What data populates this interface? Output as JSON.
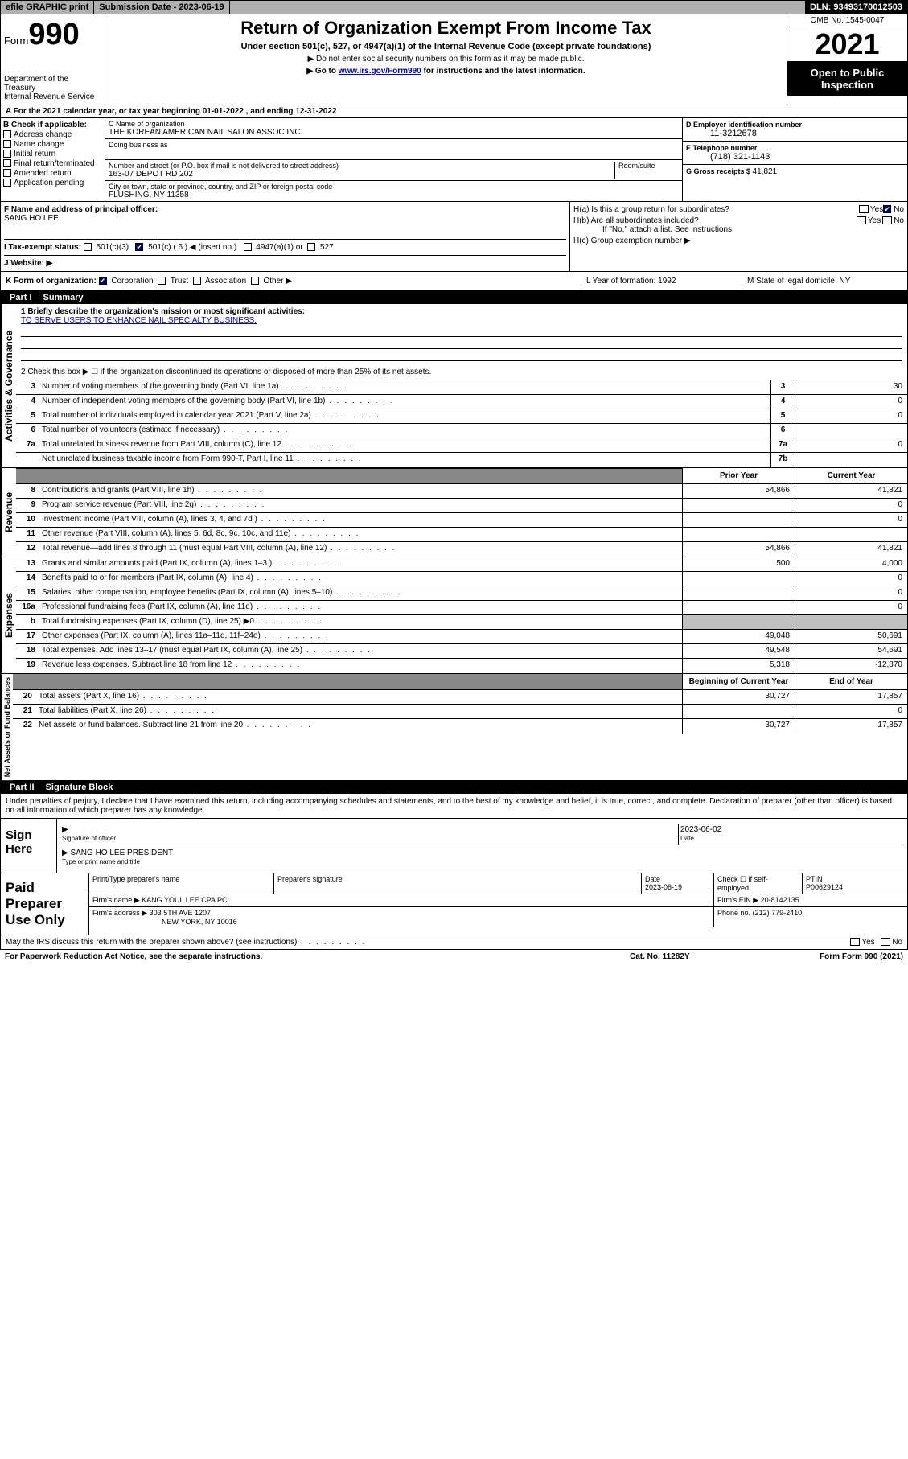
{
  "topbar": {
    "efile": "efile GRAPHIC print",
    "sub_date_label": "Submission Date - 2023-06-19",
    "dln": "DLN: 93493170012503"
  },
  "header": {
    "form_label": "Form",
    "form_num": "990",
    "dept": "Department of the Treasury",
    "irs": "Internal Revenue Service",
    "title": "Return of Organization Exempt From Income Tax",
    "subtitle": "Under section 501(c), 527, or 4947(a)(1) of the Internal Revenue Code (except private foundations)",
    "note1": "▶ Do not enter social security numbers on this form as it may be made public.",
    "note2_pre": "▶ Go to ",
    "note2_link": "www.irs.gov/Form990",
    "note2_post": " for instructions and the latest information.",
    "omb": "OMB No. 1545-0047",
    "year": "2021",
    "open": "Open to Public Inspection"
  },
  "section_a": {
    "tax_year": "A For the 2021 calendar year, or tax year beginning 01-01-2022   , and ending 12-31-2022",
    "b_label": "B Check if applicable:",
    "b_items": [
      "Address change",
      "Name change",
      "Initial return",
      "Final return/terminated",
      "Amended return",
      "Application pending"
    ],
    "c_label": "C Name of organization",
    "c_name": "THE KOREAN AMERICAN NAIL SALON ASSOC INC",
    "dba_label": "Doing business as",
    "street_label": "Number and street (or P.O. box if mail is not delivered to street address)",
    "street": "163-07 DEPOT RD 202",
    "room_label": "Room/suite",
    "city_label": "City or town, state or province, country, and ZIP or foreign postal code",
    "city": "FLUSHING, NY  11358",
    "d_label": "D Employer identification number",
    "d_val": "11-3212678",
    "e_label": "E Telephone number",
    "e_val": "(718) 321-1143",
    "g_label": "G Gross receipts $ ",
    "g_val": "41,821"
  },
  "fh": {
    "f_label": "F Name and address of principal officer:",
    "f_name": "SANG HO LEE",
    "ha": "H(a)  Is this a group return for subordinates?",
    "hb": "H(b)  Are all subordinates included?",
    "hb_note": "If \"No,\" attach a list. See instructions.",
    "hc": "H(c)  Group exemption number ▶",
    "yes": "Yes",
    "no": "No"
  },
  "ij": {
    "i_label": "I   Tax-exempt status:",
    "i_501c3": "501(c)(3)",
    "i_501c": "501(c) ( 6 ) ◀ (insert no.)",
    "i_4947": "4947(a)(1) or",
    "i_527": "527",
    "j_label": "J   Website: ▶"
  },
  "k": {
    "k_label": "K Form of organization:",
    "corp": "Corporation",
    "trust": "Trust",
    "assoc": "Association",
    "other": "Other ▶",
    "l": "L Year of formation: 1992",
    "m": "M State of legal domicile: NY"
  },
  "part1": {
    "label": "Part I",
    "title": "Summary"
  },
  "mission": {
    "q1": "1   Briefly describe the organization's mission or most significant activities:",
    "text": "TO SERVE USERS TO ENHANCE NAIL SPECIALTY BUSINESS.",
    "q2": "2   Check this box ▶ ☐  if the organization discontinued its operations or disposed of more than 25% of its net assets."
  },
  "gov_rows": [
    {
      "n": "3",
      "d": "Number of voting members of the governing body (Part VI, line 1a)",
      "box": "3",
      "v": "30"
    },
    {
      "n": "4",
      "d": "Number of independent voting members of the governing body (Part VI, line 1b)",
      "box": "4",
      "v": "0"
    },
    {
      "n": "5",
      "d": "Total number of individuals employed in calendar year 2021 (Part V, line 2a)",
      "box": "5",
      "v": "0"
    },
    {
      "n": "6",
      "d": "Total number of volunteers (estimate if necessary)",
      "box": "6",
      "v": ""
    },
    {
      "n": "7a",
      "d": "Total unrelated business revenue from Part VIII, column (C), line 12",
      "box": "7a",
      "v": "0"
    },
    {
      "n": "",
      "d": "Net unrelated business taxable income from Form 990-T, Part I, line 11",
      "box": "7b",
      "v": ""
    }
  ],
  "col_hdr": {
    "prior": "Prior Year",
    "current": "Current Year",
    "begin": "Beginning of Current Year",
    "end": "End of Year"
  },
  "rev_rows": [
    {
      "n": "8",
      "d": "Contributions and grants (Part VIII, line 1h)",
      "p": "54,866",
      "c": "41,821"
    },
    {
      "n": "9",
      "d": "Program service revenue (Part VIII, line 2g)",
      "p": "",
      "c": "0"
    },
    {
      "n": "10",
      "d": "Investment income (Part VIII, column (A), lines 3, 4, and 7d )",
      "p": "",
      "c": "0"
    },
    {
      "n": "11",
      "d": "Other revenue (Part VIII, column (A), lines 5, 6d, 8c, 9c, 10c, and 11e)",
      "p": "",
      "c": ""
    },
    {
      "n": "12",
      "d": "Total revenue—add lines 8 through 11 (must equal Part VIII, column (A), line 12)",
      "p": "54,866",
      "c": "41,821"
    }
  ],
  "exp_rows": [
    {
      "n": "13",
      "d": "Grants and similar amounts paid (Part IX, column (A), lines 1–3 )",
      "p": "500",
      "c": "4,000"
    },
    {
      "n": "14",
      "d": "Benefits paid to or for members (Part IX, column (A), line 4)",
      "p": "",
      "c": "0"
    },
    {
      "n": "15",
      "d": "Salaries, other compensation, employee benefits (Part IX, column (A), lines 5–10)",
      "p": "",
      "c": "0"
    },
    {
      "n": "16a",
      "d": "Professional fundraising fees (Part IX, column (A), line 11e)",
      "p": "",
      "c": "0"
    },
    {
      "n": "b",
      "d": "Total fundraising expenses (Part IX, column (D), line 25) ▶0",
      "p": "grey",
      "c": "grey"
    },
    {
      "n": "17",
      "d": "Other expenses (Part IX, column (A), lines 11a–11d, 11f–24e)",
      "p": "49,048",
      "c": "50,691"
    },
    {
      "n": "18",
      "d": "Total expenses. Add lines 13–17 (must equal Part IX, column (A), line 25)",
      "p": "49,548",
      "c": "54,691"
    },
    {
      "n": "19",
      "d": "Revenue less expenses. Subtract line 18 from line 12",
      "p": "5,318",
      "c": "-12,870"
    }
  ],
  "net_rows": [
    {
      "n": "20",
      "d": "Total assets (Part X, line 16)",
      "p": "30,727",
      "c": "17,857"
    },
    {
      "n": "21",
      "d": "Total liabilities (Part X, line 26)",
      "p": "",
      "c": "0"
    },
    {
      "n": "22",
      "d": "Net assets or fund balances. Subtract line 21 from line 20",
      "p": "30,727",
      "c": "17,857"
    }
  ],
  "sides": {
    "gov": "Activities & Governance",
    "rev": "Revenue",
    "exp": "Expenses",
    "net": "Net Assets or Fund Balances"
  },
  "part2": {
    "label": "Part II",
    "title": "Signature Block"
  },
  "sig": {
    "penalties": "Under penalties of perjury, I declare that I have examined this return, including accompanying schedules and statements, and to the best of my knowledge and belief, it is true, correct, and complete. Declaration of preparer (other than officer) is based on all information of which preparer has any knowledge.",
    "sign_here": "Sign Here",
    "sig_officer": "Signature of officer",
    "date": "Date",
    "sig_date": "2023-06-02",
    "name_title": "SANG HO LEE PRESIDENT",
    "name_title_sub": "Type or print name and title",
    "paid": "Paid Preparer Use Only",
    "prep_name_h": "Print/Type preparer's name",
    "prep_sig_h": "Preparer's signature",
    "prep_date_h": "Date",
    "prep_date": "2023-06-19",
    "check_if": "Check ☐ if self-employed",
    "ptin_h": "PTIN",
    "ptin": "P00629124",
    "firm_name_h": "Firm's name     ▶",
    "firm_name": "KANG YOUL LEE CPA PC",
    "firm_ein_h": "Firm's EIN ▶",
    "firm_ein": "20-8142135",
    "firm_addr_h": "Firm's address ▶",
    "firm_addr": "303 5TH AVE 1207",
    "firm_city": "NEW YORK, NY  10016",
    "phone_h": "Phone no.",
    "phone": "(212) 779-2410"
  },
  "footer": {
    "discuss": "May the IRS discuss this return with the preparer shown above? (see instructions)",
    "yes": "Yes",
    "no": "No",
    "paperwork": "For Paperwork Reduction Act Notice, see the separate instructions.",
    "cat": "Cat. No. 11282Y",
    "form": "Form 990 (2021)"
  }
}
